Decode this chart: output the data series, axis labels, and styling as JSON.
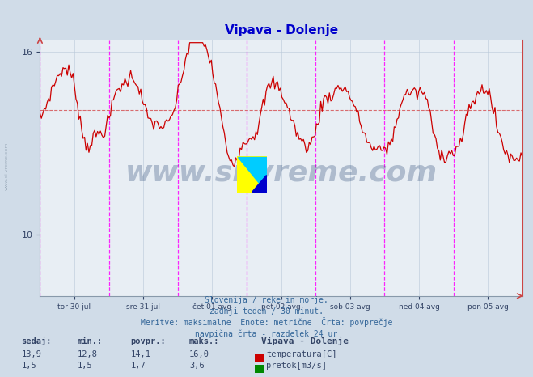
{
  "title": "Vipava - Dolenje",
  "title_color": "#0000cc",
  "bg_color": "#d0dce8",
  "plot_bg_color": "#e8eef4",
  "grid_color": "#b8c8d8",
  "ylim": [
    8.0,
    16.4
  ],
  "ytick_vals": [
    10,
    16
  ],
  "n_points": 336,
  "temp_avg": 14.1,
  "temp_min": 12.8,
  "temp_max": 16.0,
  "temp_current": 13.9,
  "flow_avg": 1.7,
  "flow_min": 1.5,
  "flow_max": 3.6,
  "flow_current": 1.5,
  "temp_color": "#cc0000",
  "flow_color": "#008800",
  "vline_color": "#ff00ff",
  "watermark_text": "www.si-vreme.com",
  "watermark_color": "#1a3a6a",
  "watermark_alpha": 0.28,
  "xlabel_ticks": [
    "tor 30 jul",
    "sre 31 jul",
    "čet 01 avg",
    "pet 02 avg",
    "sob 03 avg",
    "ned 04 avg",
    "pon 05 avg"
  ],
  "n_days": 7,
  "footer_lines": [
    "Slovenija / reke in morje.",
    "zadnji teden / 30 minut.",
    "Meritve: maksimalne  Enote: metrične  Črta: povprečje",
    "navpična črta - razdelek 24 ur"
  ],
  "footer_color": "#336699",
  "sidebar_text": "www.si-vreme.com",
  "sidebar_color": "#8899aa",
  "logo_colors": [
    "#ffff00",
    "#00ccff",
    "#0000cc"
  ],
  "table_headers": [
    "sedaj:",
    "min.:",
    "povpr.:",
    "maks.:"
  ],
  "table_vals_temp": [
    "13,9",
    "12,8",
    "14,1",
    "16,0"
  ],
  "table_vals_flow": [
    "1,5",
    "1,5",
    "1,7",
    "3,6"
  ],
  "legend_title": "Vipava - Dolenje",
  "legend_label_temp": "temperatura[C]",
  "legend_label_flow": "pretok[m3/s]",
  "legend_color_temp": "#cc0000",
  "legend_color_flow": "#008800"
}
